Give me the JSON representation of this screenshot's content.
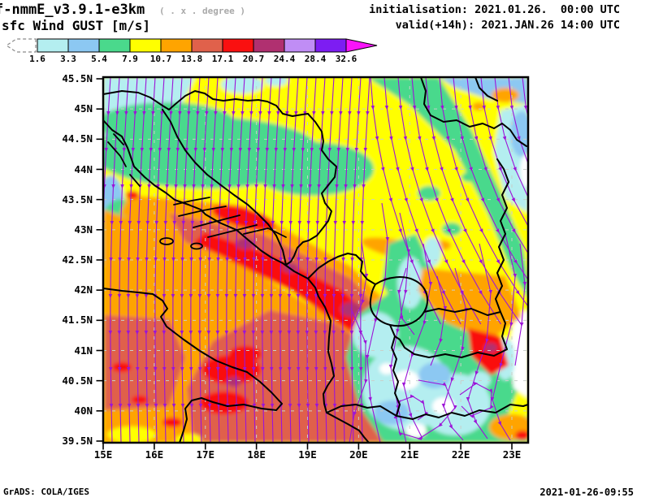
{
  "header": {
    "model_title": "f-nmmE_v3.9.1-e3km",
    "model_note": "( . x . degree )",
    "field_title": "sfc Wind GUST [m/s]",
    "init_line": "initialisation: 2021.01.26.  00:00 UTC",
    "valid_line": "valid(+14h): 2021.JAN.26 14:00 UTC"
  },
  "colorbar": {
    "levels": [
      "1.6",
      "3.3",
      "5.4",
      "7.9",
      "10.7",
      "13.8",
      "17.1",
      "20.7",
      "24.4",
      "28.4",
      "32.6"
    ],
    "cell_colors": [
      "#b4eef0",
      "#8cc8f2",
      "#4ad98c",
      "#ffff00",
      "#ffa400",
      "#e0614b",
      "#fa1010",
      "#b03070",
      "#c08df5",
      "#7d1df2"
    ],
    "under_color": "#ffffff",
    "over_color": "#f914f9",
    "units": "m/s"
  },
  "map": {
    "lat_labels": [
      "45.5N",
      "45N",
      "44.5N",
      "44N",
      "43.5N",
      "43N",
      "42.5N",
      "42N",
      "41.5N",
      "41N",
      "40.5N",
      "40N",
      "39.5N"
    ],
    "lon_labels": [
      "15E",
      "16E",
      "17E",
      "18E",
      "19E",
      "20E",
      "21E",
      "22E",
      "23E"
    ],
    "streamline_color": "#9c14d8",
    "border_color": "#000000",
    "grid_color": "#c9cfc9"
  },
  "footer": {
    "left": "GrADS: COLA/IGES",
    "right": "2021-01-26-09:55"
  }
}
